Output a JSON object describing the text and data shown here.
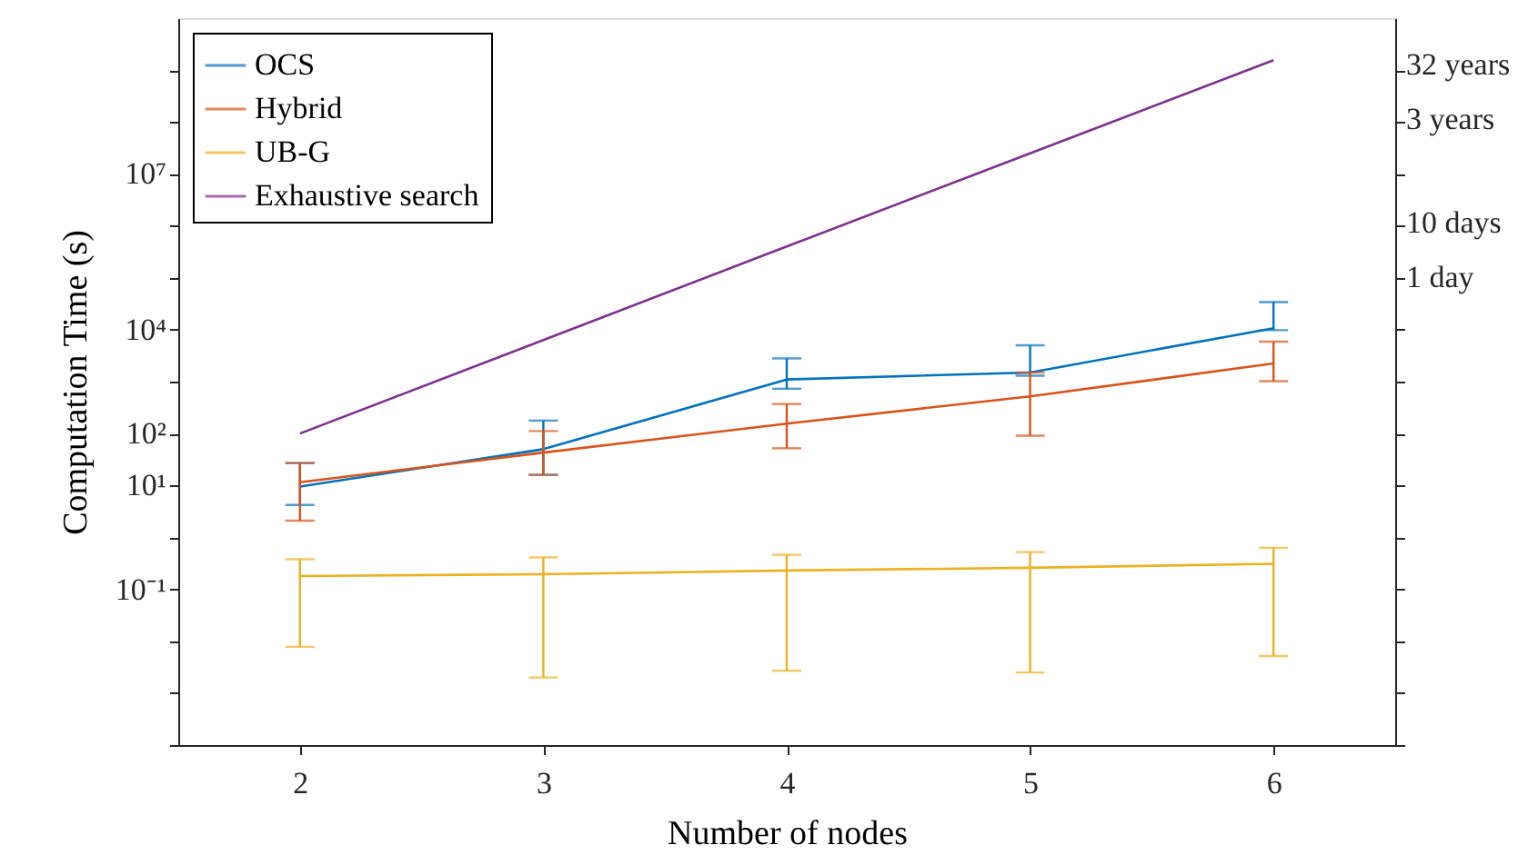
{
  "chart_data": {
    "type": "line",
    "xlabel": "Number of nodes",
    "ylabel": "Computation Time (s)",
    "log": "y",
    "grid": false,
    "legend": "top left",
    "marker": "none",
    "line_style": "solid",
    "x": [
      2,
      3,
      4,
      5,
      6
    ],
    "xlim": [
      1.5,
      6.5
    ],
    "xticks": [
      2,
      3,
      4,
      5,
      6
    ],
    "ylim": [
      0.0001,
      10000000000
    ],
    "yticks": [
      {
        "value": 0.0001,
        "label": null
      },
      {
        "value": 0.001,
        "label": null
      },
      {
        "value": 0.01,
        "label": null
      },
      {
        "value": 0.1,
        "label": "10⁻¹"
      },
      {
        "value": 1,
        "label": null
      },
      {
        "value": 10,
        "label": "10¹"
      },
      {
        "value": 100,
        "label": "10²"
      },
      {
        "value": 1000,
        "label": null
      },
      {
        "value": 10000,
        "label": "10⁴"
      },
      {
        "value": 100000,
        "label": null
      },
      {
        "value": 1000000,
        "label": null
      },
      {
        "value": 10000000,
        "label": "10⁷"
      },
      {
        "value": 100000000,
        "label": null
      },
      {
        "value": 1000000000,
        "label": null
      }
    ],
    "annotations": [
      "32 years",
      "3   years",
      "10  days",
      "1 day"
    ],
    "series": [
      {
        "name": "OCS",
        "color": "#0072bd",
        "values": [
          9.5,
          50,
          1100,
          1500,
          10700
        ],
        "errors": [
          [
            4.2,
            27
          ],
          [
            16,
            178
          ],
          [
            730,
            2800
          ],
          [
            1300,
            5000
          ],
          [
            9800,
            34000
          ]
        ]
      },
      {
        "name": "Hybrid",
        "color": "#d95319",
        "values": [
          11.5,
          43,
          155,
          520,
          2240
        ],
        "errors": [
          [
            2.1,
            27
          ],
          [
            16,
            112
          ],
          [
            52,
            370
          ],
          [
            91,
            1500
          ],
          [
            1020,
            5900
          ]
        ]
      },
      {
        "name": "UB-G",
        "color": "#edb120",
        "values": [
          0.18,
          0.195,
          0.23,
          0.26,
          0.31
        ],
        "errors": [
          [
            0.0078,
            0.38
          ],
          [
            0.002,
            0.41
          ],
          [
            0.0027,
            0.46
          ],
          [
            0.0025,
            0.52
          ],
          [
            0.0052,
            0.63
          ]
        ]
      },
      {
        "name": "Exhaustive search",
        "color": "#7e2f8e",
        "values": [
          100,
          6300,
          400000,
          25000000,
          1550000000
        ]
      }
    ]
  }
}
